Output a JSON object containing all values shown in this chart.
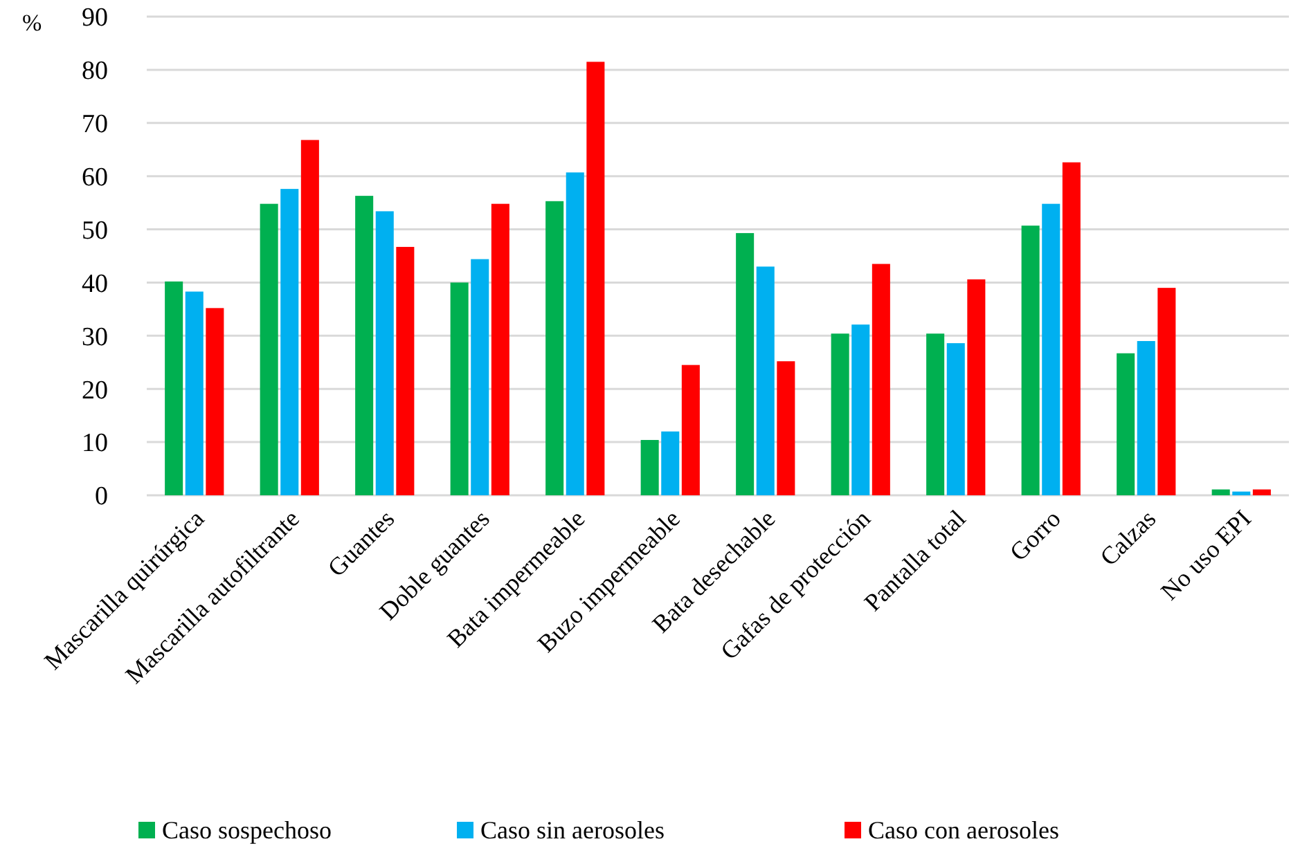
{
  "chart_data": {
    "type": "bar",
    "ylabel": "%",
    "categories": [
      "Mascarilla quirúrgica",
      "Mascarilla autofiltrante",
      "Guantes",
      "Doble guantes",
      "Bata impermeable",
      "Buzo impermeable",
      "Bata desechable",
      "Gafas de  protección",
      "Pantalla total",
      "Gorro",
      "Calzas",
      "No uso EPI"
    ],
    "series": [
      {
        "name": "Caso sospechoso",
        "color": "#00b050",
        "values": [
          40.2,
          54.8,
          56.3,
          40.0,
          55.3,
          10.4,
          49.3,
          30.4,
          30.4,
          50.7,
          26.7,
          1.1
        ]
      },
      {
        "name": "Caso sin aerosoles",
        "color": "#00b0f0",
        "values": [
          38.3,
          57.6,
          53.4,
          44.4,
          60.7,
          12.0,
          43.0,
          32.1,
          28.6,
          54.8,
          29.0,
          0.7
        ]
      },
      {
        "name": "Caso con aerosoles",
        "color": "#ff0000",
        "values": [
          35.2,
          66.8,
          46.7,
          54.8,
          81.5,
          24.5,
          25.2,
          43.5,
          40.6,
          62.6,
          39.0,
          1.1
        ]
      }
    ],
    "ylim": [
      0,
      90
    ],
    "yticks": [
      0,
      10,
      20,
      30,
      40,
      50,
      60,
      70,
      80,
      90
    ],
    "grid": "y",
    "legend": "bottom"
  }
}
